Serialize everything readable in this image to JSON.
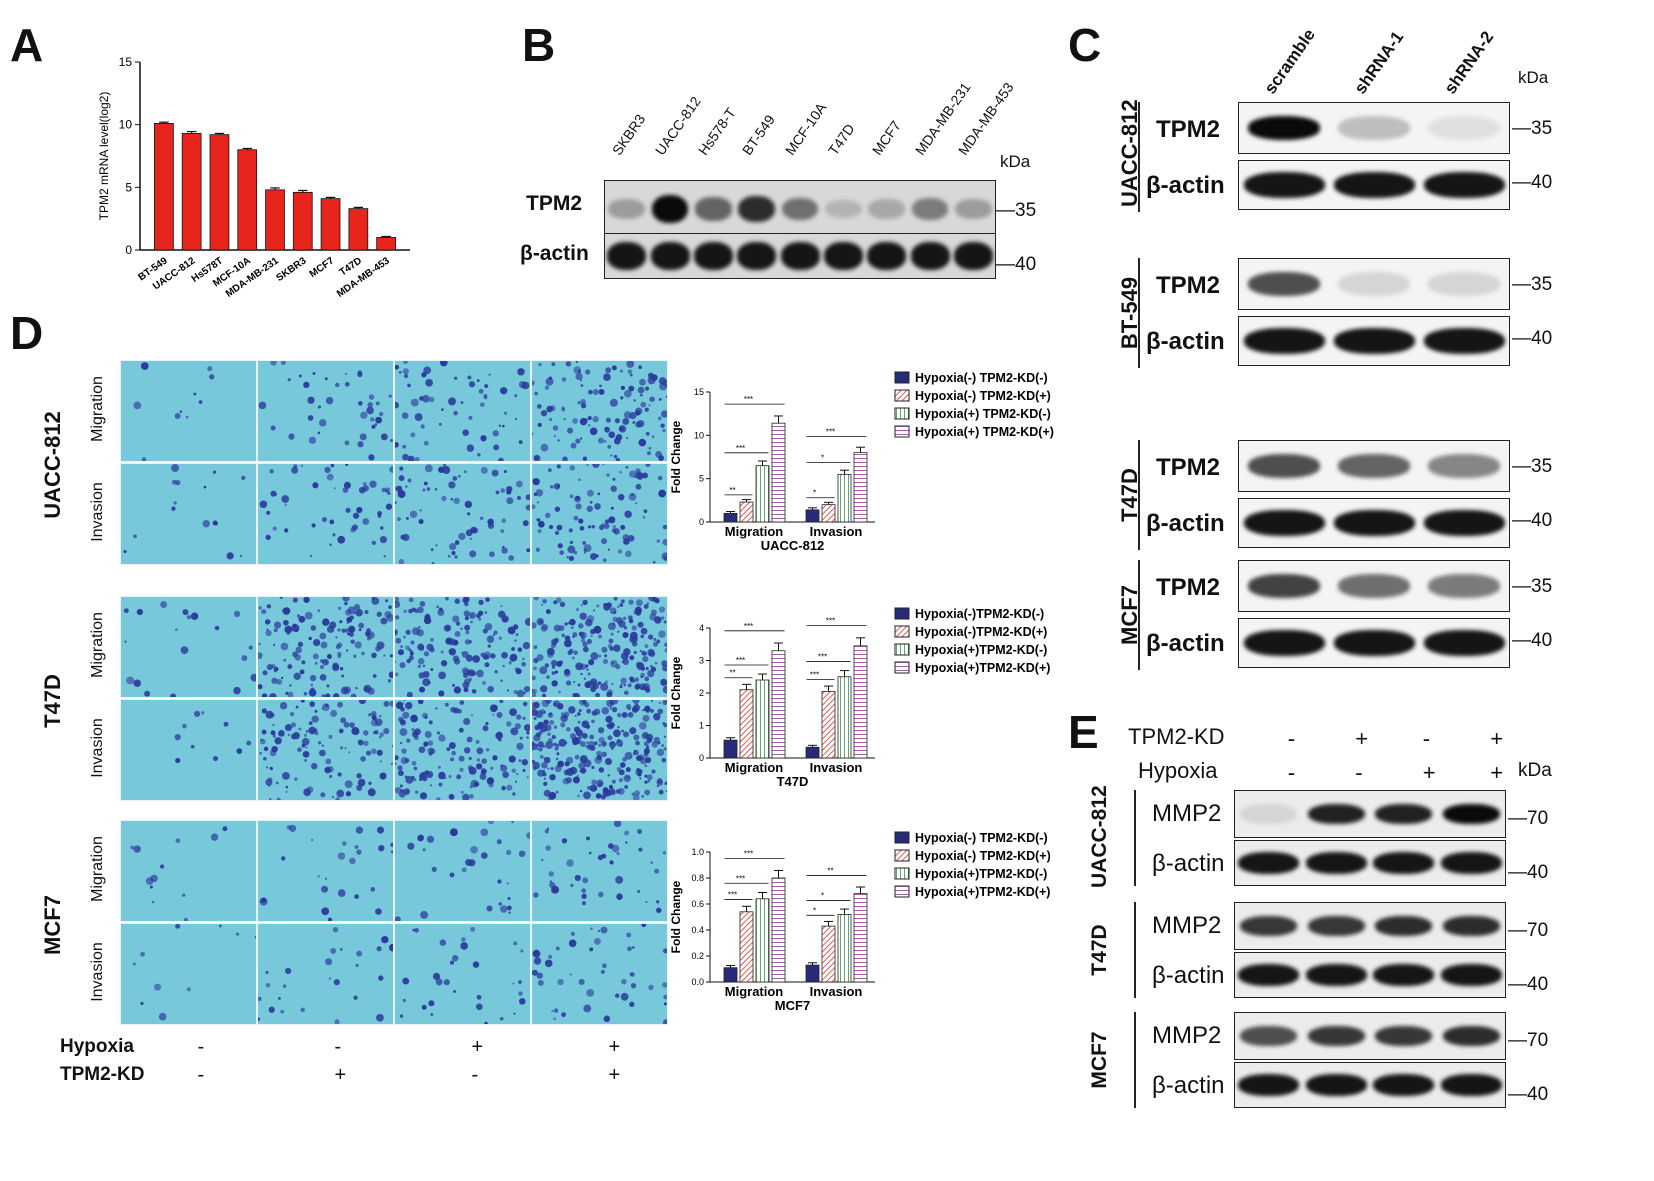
{
  "panels": {
    "A": "A",
    "B": "B",
    "C": "C",
    "D": "D",
    "E": "E"
  },
  "panelA": {
    "chart_data": {
      "type": "bar",
      "ylabel": "TPM2 mRNA level(log2)",
      "ylim": [
        0,
        15
      ],
      "yticks": [
        "0",
        "5",
        "10",
        "15"
      ],
      "categories": [
        "BT-549",
        "UACC-812",
        "Hs578T",
        "MCF-10A",
        "MDA-MB-231",
        "SKBR3",
        "MCF7",
        "T47D",
        "MDA-MB-453"
      ],
      "values": [
        10.1,
        9.3,
        9.2,
        8.0,
        4.8,
        4.6,
        4.1,
        3.3,
        1.0
      ],
      "errors": [
        0.1,
        0.15,
        0.1,
        0.1,
        0.15,
        0.15,
        0.1,
        0.1,
        0.08
      ],
      "color": "#e8251c"
    }
  },
  "panelB": {
    "lanes": [
      "SKBR3",
      "UACC-812",
      "Hs578-T",
      "BT-549",
      "MCF-10A",
      "T47D",
      "MCF7",
      "MDA-MB-231",
      "MDA-MB-453"
    ],
    "kda": "kDa",
    "rows": [
      {
        "label": "TPM2",
        "mw": "35"
      },
      {
        "label": "β-actin",
        "mw": "40"
      }
    ],
    "tpm2_intensity": [
      0.35,
      1.0,
      0.6,
      0.85,
      0.55,
      0.25,
      0.3,
      0.5,
      0.35
    ]
  },
  "panelC": {
    "lanes": [
      "scramble",
      "shRNA-1",
      "shRNA-2"
    ],
    "kda": "kDa",
    "groups": [
      {
        "cell": "UACC-812",
        "rows": [
          {
            "label": "TPM2",
            "mw": "35"
          },
          {
            "label": "β-actin",
            "mw": "40"
          }
        ],
        "tpm2": [
          1.0,
          0.2,
          0.05
        ]
      },
      {
        "cell": "BT-549",
        "rows": [
          {
            "label": "TPM2",
            "mw": "35"
          },
          {
            "label": "β-actin",
            "mw": "40"
          }
        ],
        "tpm2": [
          0.7,
          0.1,
          0.1
        ]
      },
      {
        "cell": "T47D",
        "rows": [
          {
            "label": "TPM2",
            "mw": "35"
          },
          {
            "label": "β-actin",
            "mw": "40"
          }
        ],
        "tpm2": [
          0.7,
          0.6,
          0.45
        ]
      },
      {
        "cell": "MCF7",
        "rows": [
          {
            "label": "TPM2",
            "mw": "35"
          },
          {
            "label": "β-actin",
            "mw": "40"
          }
        ],
        "tpm2": [
          0.75,
          0.55,
          0.5
        ]
      }
    ]
  },
  "panelD": {
    "cells": [
      "UACC-812",
      "T47D",
      "MCF7"
    ],
    "rows": [
      "Migration",
      "Invasion"
    ],
    "conditions": {
      "hypoxia_label": "Hypoxia",
      "kd_label": "TPM2-KD",
      "hypoxia": [
        "-",
        "-",
        "+",
        "+"
      ],
      "kd": [
        "-",
        "+",
        "-",
        "+"
      ]
    },
    "charts": [
      {
        "chart_data": {
          "type": "bar",
          "title": "UACC-812",
          "ylabel": "Fold Change",
          "ylim": [
            0,
            15
          ],
          "yticks": [
            "0",
            "5",
            "10",
            "15"
          ],
          "categories": [
            "Migration",
            "Invasion"
          ],
          "series": [
            {
              "name": "Hypoxia(-) TPM2-KD(-)",
              "values": [
                1.0,
                1.4
              ]
            },
            {
              "name": "Hypoxia(-) TPM2-KD(+)",
              "values": [
                2.3,
                2.0
              ]
            },
            {
              "name": "Hypoxia(+) TPM2-KD(-)",
              "values": [
                6.5,
                5.5
              ]
            },
            {
              "name": "Hypoxia(+) TPM2-KD(+)",
              "values": [
                11.4,
                8.0
              ]
            }
          ],
          "sig": [
            [
              "**",
              "***",
              "***"
            ],
            [
              "*",
              "*",
              "***"
            ]
          ]
        }
      },
      {
        "chart_data": {
          "type": "bar",
          "title": "T47D",
          "ylabel": "Fold Change",
          "ylim": [
            0,
            4
          ],
          "yticks": [
            "0",
            "1",
            "2",
            "3",
            "4"
          ],
          "categories": [
            "Migration",
            "Invasion"
          ],
          "series": [
            {
              "name": "Hypoxia(-)TPM2-KD(-)",
              "values": [
                0.55,
                0.33
              ]
            },
            {
              "name": "Hypoxia(-)TPM2-KD(+)",
              "values": [
                2.1,
                2.05
              ]
            },
            {
              "name": "Hypoxia(+)TPM2-KD(-)",
              "values": [
                2.4,
                2.5
              ]
            },
            {
              "name": "Hypoxia(+)TPM2-KD(+)",
              "values": [
                3.3,
                3.45
              ]
            }
          ],
          "sig": [
            [
              "**",
              "***",
              "***"
            ],
            [
              "***",
              "***",
              "***"
            ]
          ]
        }
      },
      {
        "chart_data": {
          "type": "bar",
          "title": "MCF7",
          "ylabel": "Fold Change",
          "ylim": [
            0,
            1.0
          ],
          "yticks": [
            "0.0",
            "0.2",
            "0.4",
            "0.6",
            "0.8",
            "1.0"
          ],
          "categories": [
            "Migration",
            "Invasion"
          ],
          "series": [
            {
              "name": "Hypoxia(-) TPM2-KD(-)",
              "values": [
                0.11,
                0.13
              ]
            },
            {
              "name": "Hypoxia(-) TPM2-KD(+)",
              "values": [
                0.54,
                0.43
              ]
            },
            {
              "name": "Hypoxia(+)TPM2-KD(-)",
              "values": [
                0.64,
                0.52
              ]
            },
            {
              "name": "Hypoxia(+)TPM2-KD(+)",
              "values": [
                0.8,
                0.68
              ]
            }
          ],
          "sig": [
            [
              "***",
              "***",
              "***"
            ],
            [
              "*",
              "*",
              "**"
            ]
          ]
        }
      }
    ]
  },
  "panelE": {
    "row1_label": "TPM2-KD",
    "row1": [
      "-",
      "+",
      "-",
      "+"
    ],
    "row2_label": "Hypoxia",
    "row2": [
      "-",
      "-",
      "+",
      "+"
    ],
    "kda": "kDa",
    "groups": [
      {
        "cell": "UACC-812",
        "rows": [
          {
            "label": "MMP2",
            "mw": "70"
          },
          {
            "label": "β-actin",
            "mw": "40"
          }
        ],
        "mmp2": [
          0.1,
          0.9,
          0.9,
          1.0
        ]
      },
      {
        "cell": "T47D",
        "rows": [
          {
            "label": "MMP2",
            "mw": "70"
          },
          {
            "label": "β-actin",
            "mw": "40"
          }
        ],
        "mmp2": [
          0.8,
          0.8,
          0.85,
          0.85
        ]
      },
      {
        "cell": "MCF7",
        "rows": [
          {
            "label": "MMP2",
            "mw": "70"
          },
          {
            "label": "β-actin",
            "mw": "40"
          }
        ],
        "mmp2": [
          0.7,
          0.8,
          0.8,
          0.85
        ]
      }
    ]
  },
  "colors": {
    "bar_red": "#e8251c",
    "navy": "#2a2a7a",
    "hatch_red": "#d9261c",
    "hatch_green": "#2a8a3a",
    "hatch_purple": "#8a2a8a",
    "stain_bg": "#78c8dc",
    "stain_cell": "#2a3a9a"
  }
}
